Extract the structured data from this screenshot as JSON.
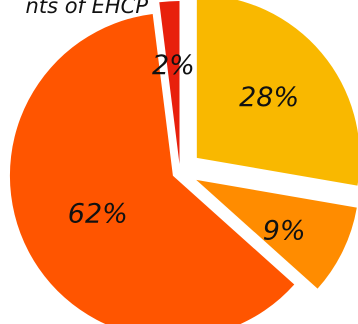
{
  "chart_data": {
    "type": "pie",
    "title": "nts of EHCP",
    "categories": [
      "",
      "",
      "",
      ""
    ],
    "values": [
      28,
      9,
      62,
      2
    ],
    "labels": [
      "28%",
      "9%",
      "62%",
      "2%"
    ],
    "colors": [
      "#f9b800",
      "#ff8c00",
      "#ff5500",
      "#e8200c"
    ],
    "exploded": true,
    "legend": "none"
  }
}
